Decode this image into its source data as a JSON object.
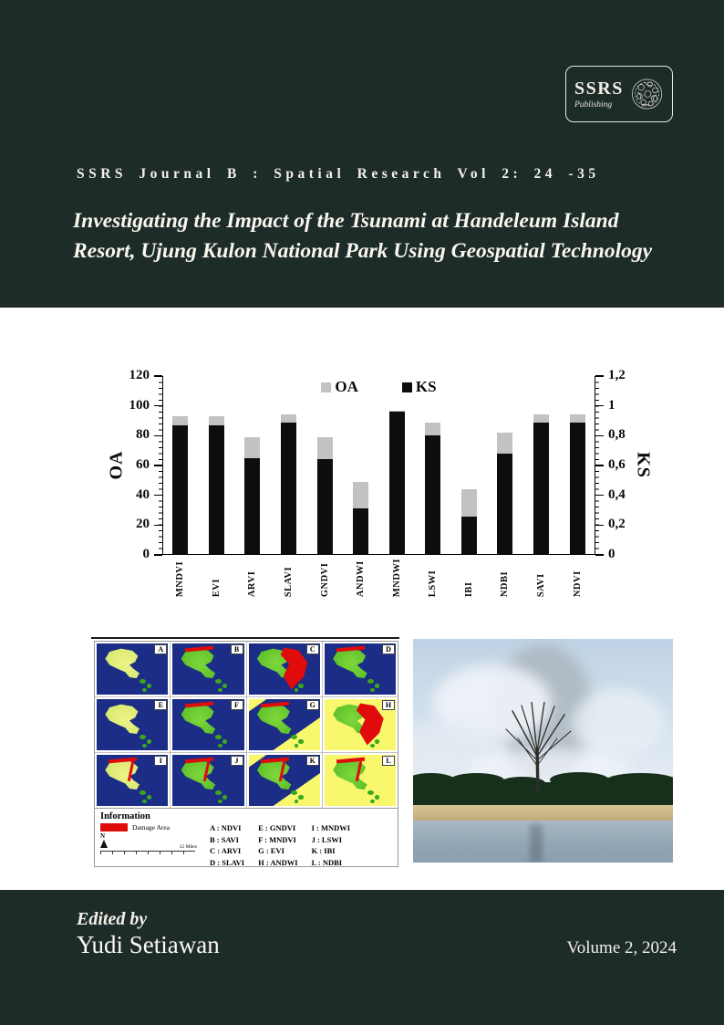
{
  "colors": {
    "background_dark": "#1d2b29",
    "background_light": "#ffffff",
    "text_light": "#f4f1e8",
    "bar_gray": "#c2c2c2",
    "bar_black": "#0d0d0d",
    "damage_red": "#e00b0b",
    "map_navy": "#1b2d86",
    "map_yellow": "#f8f76e"
  },
  "header": {
    "logo": {
      "name": "SSRS",
      "subtitle": "Publishing"
    },
    "journal_line": "SSRS Journal B : Spatial Research Vol 2: 24 -35",
    "title_line1": "Investigating the Impact of the Tsunami at Handeleum Island",
    "title_line2": "Resort, Ujung Kulon National Park Using Geospatial Technology"
  },
  "chart_data": {
    "type": "bar",
    "title": "",
    "categories": [
      "MNDVI",
      "EVI",
      "ARVI",
      "SLAVI",
      "GNDVI",
      "ANDWI",
      "MNDWI",
      "LSWI",
      "IBI",
      "NDBI",
      "SAVI",
      "NDVI"
    ],
    "series": [
      {
        "name": "OA",
        "color": "#c2c2c2",
        "axis": "left",
        "values": [
          93,
          93,
          79,
          94,
          79,
          49,
          97,
          89,
          44,
          82,
          94,
          94
        ]
      },
      {
        "name": "KS",
        "color": "#0d0d0d",
        "axis": "right",
        "values": [
          0.87,
          0.87,
          0.65,
          0.89,
          0.64,
          0.31,
          0.96,
          0.8,
          0.26,
          0.68,
          0.89,
          0.89
        ]
      }
    ],
    "left_axis": {
      "label": "OA",
      "min": 0,
      "max": 120,
      "ticks": [
        "0",
        "20",
        "40",
        "60",
        "80",
        "100",
        "120"
      ]
    },
    "right_axis": {
      "label": "KS",
      "min": 0,
      "max": 1.2,
      "ticks": [
        "0",
        "0,2",
        "0,4",
        "0,6",
        "0,8",
        "1",
        "1,2"
      ]
    },
    "legend_position": "top-center",
    "grid": false
  },
  "map_figure": {
    "cells": [
      {
        "letter": "A",
        "bg": "navy",
        "island": "yellowgreen",
        "damage": "none"
      },
      {
        "letter": "B",
        "bg": "navy",
        "island": "green",
        "damage": "top"
      },
      {
        "letter": "C",
        "bg": "navy",
        "island": "green",
        "damage": "large-right"
      },
      {
        "letter": "D",
        "bg": "navy",
        "island": "green",
        "damage": "top"
      },
      {
        "letter": "E",
        "bg": "navy",
        "island": "yellowgreen",
        "damage": "none"
      },
      {
        "letter": "F",
        "bg": "navy",
        "island": "green",
        "damage": "top"
      },
      {
        "letter": "G",
        "bg": "yellow",
        "island": "green",
        "damage": "top",
        "navy_band": true
      },
      {
        "letter": "H",
        "bg": "yellow",
        "island": "green",
        "damage": "large-right"
      },
      {
        "letter": "I",
        "bg": "navy",
        "island": "yellowgreen",
        "damage": "top-line"
      },
      {
        "letter": "J",
        "bg": "navy",
        "island": "green",
        "damage": "top-line"
      },
      {
        "letter": "K",
        "bg": "yellow",
        "island": "green",
        "damage": "top-line",
        "navy_band": true
      },
      {
        "letter": "L",
        "bg": "yellow",
        "island": "green",
        "damage": "top-line"
      }
    ],
    "info": {
      "header": "Information",
      "damage_label": "Damage Area",
      "north_label": "N",
      "scale_label": "12 Miles",
      "legend_columns": [
        [
          "A : NDVI",
          "B : SAVI",
          "C : ARVI",
          "D : SLAVI"
        ],
        [
          "E : GNDVI",
          "F : MNDVI",
          "G : EVI",
          "H : ANDWI"
        ],
        [
          "I : MNDWI",
          "J : LSWI",
          "K : IBI",
          "L : NDBI"
        ]
      ]
    }
  },
  "footer": {
    "edited_by": "Edited by",
    "editor": "Yudi Setiawan",
    "volume": "Volume 2, 2024"
  }
}
